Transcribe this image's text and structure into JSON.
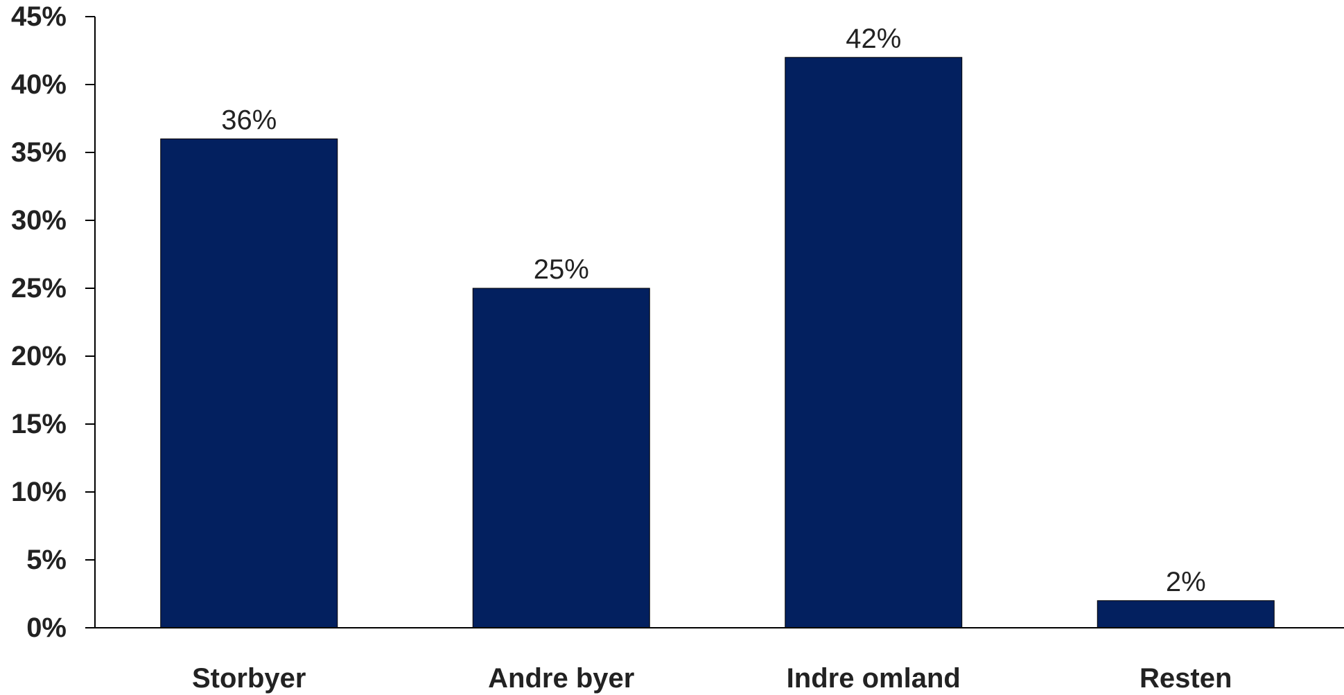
{
  "chart_data": {
    "type": "bar",
    "categories": [
      "Storbyer",
      "Andre byer",
      "Indre omland",
      "Resten"
    ],
    "values": [
      36,
      25,
      42,
      2
    ],
    "data_labels": [
      "36%",
      "25%",
      "42%",
      "2%"
    ],
    "ylim": [
      0,
      45
    ],
    "yticks": [
      0,
      5,
      10,
      15,
      20,
      25,
      30,
      35,
      40,
      45
    ],
    "ytick_labels": [
      "0%",
      "5%",
      "10%",
      "15%",
      "20%",
      "25%",
      "30%",
      "35%",
      "40%",
      "45%"
    ],
    "title": "",
    "xlabel": "",
    "ylabel": "",
    "grid": false,
    "legend": "none",
    "bar_color": "#03205f"
  }
}
